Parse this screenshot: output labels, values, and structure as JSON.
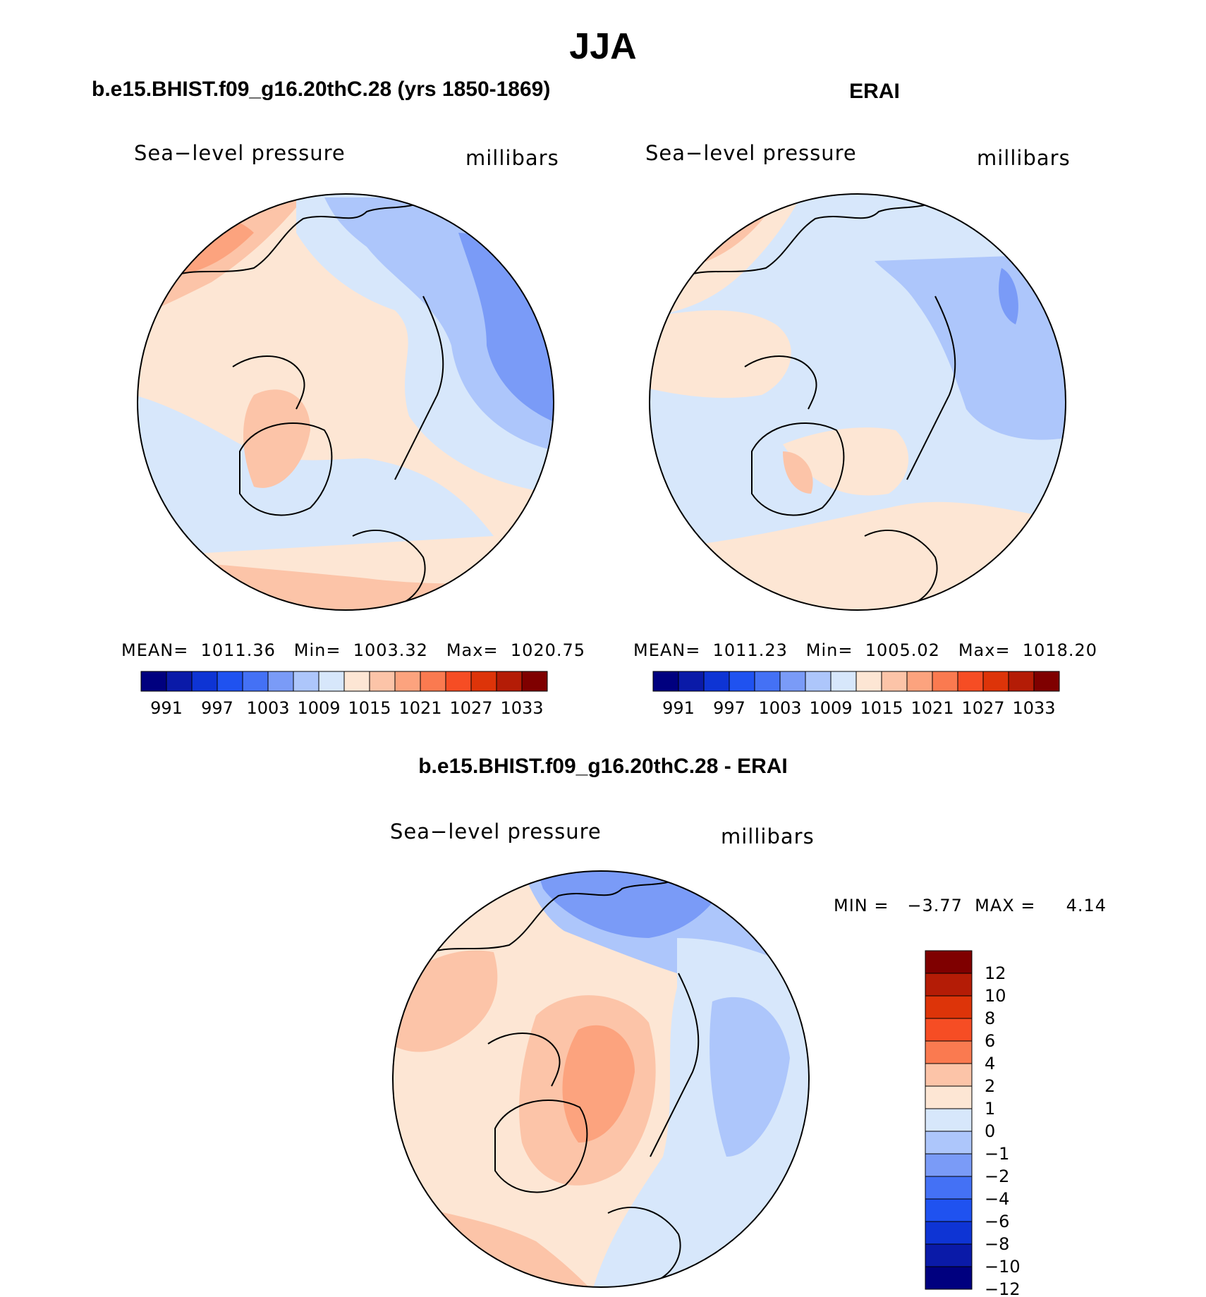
{
  "title": "JJA",
  "chart_data": [
    {
      "type": "heatmap",
      "title": "b.e15.BHIST.f09_g16.20thC.28 (yrs 1850-1869)",
      "left_label": "Sea−level pressure",
      "right_label": "millibars",
      "projection": "north polar stereographic",
      "stats_text": "MEAN=  1011.36   Min=  1003.32   Max=  1020.75",
      "stats": {
        "mean": 1011.36,
        "min": 1003.32,
        "max": 1020.75
      },
      "colorbar": {
        "orientation": "horizontal",
        "tick_labels": [
          "991",
          "997",
          "1003",
          "1009",
          "1015",
          "1021",
          "1027",
          "1033"
        ]
      }
    },
    {
      "type": "heatmap",
      "title": "ERAI",
      "left_label": "Sea−level pressure",
      "right_label": "millibars",
      "projection": "north polar stereographic",
      "stats_text": "MEAN=  1011.23   Min=  1005.02   Max=  1018.20",
      "stats": {
        "mean": 1011.23,
        "min": 1005.02,
        "max": 1018.2
      },
      "colorbar": {
        "orientation": "horizontal",
        "tick_labels": [
          "991",
          "997",
          "1003",
          "1009",
          "1015",
          "1021",
          "1027",
          "1033"
        ]
      }
    },
    {
      "type": "heatmap",
      "title": "b.e15.BHIST.f09_g16.20thC.28 - ERAI",
      "left_label": "Sea−level pressure",
      "right_label": "millibars",
      "projection": "north polar stereographic",
      "stats_text": "MIN =   −3.77  MAX =     4.14",
      "stats": {
        "min": -3.77,
        "max": 4.14
      },
      "colorbar": {
        "orientation": "vertical",
        "tick_labels": [
          "12",
          "10",
          "8",
          "6",
          "4",
          "2",
          "1",
          "0",
          "−1",
          "−2",
          "−4",
          "−6",
          "−8",
          "−10",
          "−12"
        ]
      }
    }
  ],
  "colors": {
    "bar_scale": [
      "#00007f",
      "#0a1aa8",
      "#0e34d4",
      "#1f52f0",
      "#4471f5",
      "#7a9bf7",
      "#adc6fb",
      "#d7e7fb",
      "#fde6d4",
      "#fcc4a8",
      "#fca37e",
      "#fa7a50",
      "#f64d24",
      "#dd3409",
      "#b41c06",
      "#7f0000"
    ],
    "diff_scale": [
      "#7f0000",
      "#b41c06",
      "#dd3409",
      "#f64d24",
      "#fa7a50",
      "#fcc4a8",
      "#fde6d4",
      "#d7e7fb",
      "#adc6fb",
      "#7a9bf7",
      "#4471f5",
      "#1f52f0",
      "#0e34d4",
      "#0a1aa8",
      "#00007f"
    ]
  }
}
